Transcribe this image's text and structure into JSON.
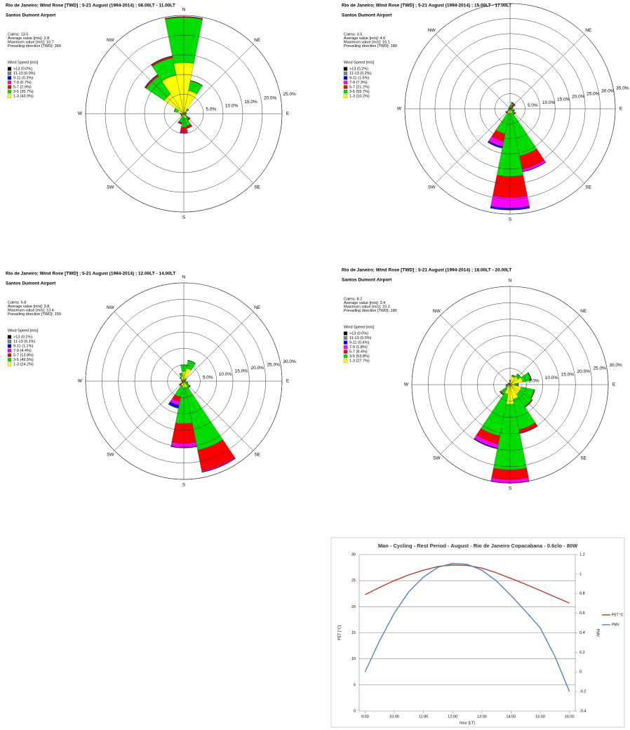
{
  "chart_data": [
    {
      "type": "windrose",
      "title": "Rio de Janeiro; Wind Rose [TWD] ; 5-21 August (1994-2014) ; 06.00LT - 11.00LT",
      "subtitle": "Santos Dumont Airport",
      "stats": [
        "Calms: 13.5",
        "Average value [m/s]: 2.8",
        "Maximum value [m/s]: 10.7",
        "Prevailing direction [TWD]: 360"
      ],
      "legend_title": "Wind Speed [m/s]",
      "categories": [
        "N",
        null,
        "NE",
        null,
        "E",
        null,
        "SE",
        null,
        "S",
        null,
        "SW",
        null,
        "W",
        null,
        "NW",
        null
      ],
      "rlim": [
        0,
        25
      ],
      "rticks": [
        {
          "value": 5,
          "label": "5.0%"
        },
        {
          "value": 10,
          "label": "10.0%"
        },
        {
          "value": 15,
          "label": "15.0%"
        },
        {
          "value": 20,
          "label": "20.0%"
        },
        {
          "value": 25,
          "label": "25.0%"
        }
      ],
      "series": [
        {
          "name": ">13 (0.0%)",
          "color": "#000000",
          "values": [
            0,
            0,
            0,
            0,
            0,
            0,
            0,
            0,
            0,
            0,
            0,
            0,
            0,
            0,
            0,
            0
          ]
        },
        {
          "name": "11-13 (0.0%)",
          "color": "#808080",
          "values": [
            0,
            0,
            0,
            0,
            0,
            0,
            0,
            0,
            0,
            0,
            0,
            0,
            0,
            0,
            0,
            0
          ]
        },
        {
          "name": "9-11 (0.3%)",
          "color": "#0000ff",
          "values": [
            0,
            0,
            0,
            0,
            0,
            0,
            0,
            0,
            0.1,
            0,
            0,
            0,
            0,
            0,
            0.1,
            0.1
          ]
        },
        {
          "name": "7-9 (0.7%)",
          "color": "#ff00ff",
          "values": [
            0,
            0,
            0,
            0,
            0,
            0,
            0.1,
            0.1,
            0.2,
            0.1,
            0,
            0,
            0,
            0,
            0.1,
            0.1
          ]
        },
        {
          "name": "5-7 (2.9%)",
          "color": "#ff0000",
          "values": [
            0.2,
            0.1,
            0,
            0,
            0,
            0,
            0.3,
            0.5,
            1.2,
            0.3,
            0,
            0,
            0,
            0,
            0.3,
            0.3
          ]
        },
        {
          "name": "3-5 (35.7%)",
          "color": "#00dd00",
          "values": [
            11.5,
            2.5,
            0.5,
            0.2,
            0.2,
            0.3,
            0.8,
            2,
            2.5,
            1.5,
            0.3,
            0.2,
            0.3,
            1,
            5.5,
            4.5
          ]
        },
        {
          "name": "1-3 (43.9%)",
          "color": "#ffff00",
          "values": [
            13,
            6,
            1,
            0.5,
            0.3,
            0.3,
            0.8,
            1.2,
            1,
            0.8,
            0.5,
            0.5,
            0.6,
            1.5,
            6,
            10
          ]
        }
      ]
    },
    {
      "type": "windrose",
      "title": "Rio de Janeiro; Wind Rose [TWD] ; 5-21 August (1994-2014) ; 15.00LT - 17.00LT",
      "subtitle": "Santos Dumont Airport",
      "stats": [
        "Calms: 3.5",
        "Average value [m/s]: 4.6",
        "Maximum value [m/s]: 15.1",
        "Prevailing direction [TWD]: 180"
      ],
      "legend_title": "Wind Speed [m/s]",
      "categories": [
        "N",
        null,
        "NE",
        null,
        "E",
        null,
        "SE",
        null,
        "S",
        null,
        "SW",
        null,
        "W",
        null,
        "NW",
        null
      ],
      "rlim": [
        0,
        35
      ],
      "rticks": [
        {
          "value": 5,
          "label": "5.0%"
        },
        {
          "value": 10,
          "label": "10.0%"
        },
        {
          "value": 15,
          "label": "15.0%"
        },
        {
          "value": 20,
          "label": "20.0%"
        },
        {
          "value": 25,
          "label": "25.0%"
        },
        {
          "value": 30,
          "label": "30.0%"
        },
        {
          "value": 35,
          "label": "35.0%"
        }
      ],
      "series": [
        {
          "name": ">13 (0.2%)",
          "color": "#000000",
          "values": [
            0,
            0,
            0,
            0,
            0,
            0,
            0,
            0,
            0.1,
            0.1,
            0,
            0,
            0,
            0,
            0,
            0
          ]
        },
        {
          "name": "11-13 (0.2%)",
          "color": "#808080",
          "values": [
            0,
            0,
            0,
            0,
            0,
            0,
            0,
            0,
            0.1,
            0.1,
            0,
            0,
            0,
            0,
            0,
            0
          ]
        },
        {
          "name": "9-11 (1.6%)",
          "color": "#0000ff",
          "values": [
            0,
            0,
            0,
            0,
            0,
            0,
            0,
            0.1,
            0.5,
            0.4,
            0,
            0,
            0,
            0,
            0,
            0
          ]
        },
        {
          "name": "7-9 (7.3%)",
          "color": "#ff00ff",
          "values": [
            0,
            0,
            0.2,
            0,
            0,
            0,
            0,
            0.8,
            3.5,
            1.8,
            0,
            0,
            0,
            0,
            0,
            0
          ]
        },
        {
          "name": "5-7 (21.2%)",
          "color": "#ff0000",
          "values": [
            0,
            0.2,
            0.8,
            0.2,
            0,
            0.2,
            0.3,
            4.5,
            7,
            2.5,
            0.3,
            0,
            0,
            0,
            0,
            0
          ]
        },
        {
          "name": "3-5 (55.7%)",
          "color": "#00dd00",
          "values": [
            0.5,
            1.2,
            0.8,
            0.5,
            0.3,
            0.8,
            1.5,
            14.5,
            21,
            7,
            1,
            0.3,
            0.2,
            0.2,
            0.2,
            0.3
          ]
        },
        {
          "name": "1-3 (10.2%)",
          "color": "#ffff00",
          "values": [
            0.5,
            0.8,
            0.3,
            0.3,
            0.3,
            0.5,
            0.5,
            1.5,
            1.5,
            1.5,
            0.5,
            0.3,
            0.2,
            0.2,
            0.3,
            0.3
          ]
        }
      ]
    },
    {
      "type": "windrose",
      "title": "Rio de Janeiro; Wind Rose [TWD] ; 5-21 August (1994-2014) ; 12.00LT - 14.00LT",
      "subtitle": "Santos Dumont Airport",
      "stats": [
        "Calms: 6.8",
        "Average value [m/s]: 3.8",
        "Maximum value [m/s]: 13.4",
        "Prevailing direction [TWD]: 150"
      ],
      "legend_title": "Wind Speed [m/s]",
      "categories": [
        "N",
        null,
        "NE",
        null,
        "E",
        null,
        "SE",
        null,
        "S",
        null,
        "SW",
        null,
        "W",
        null,
        "NW",
        null
      ],
      "rlim": [
        0,
        30
      ],
      "rticks": [
        {
          "value": 5,
          "label": "5.0%"
        },
        {
          "value": 10,
          "label": "10.0%"
        },
        {
          "value": 15,
          "label": "15.0%"
        },
        {
          "value": 20,
          "label": "20.0%"
        },
        {
          "value": 25,
          "label": "25.0%"
        },
        {
          "value": 30,
          "label": "30.0%"
        }
      ],
      "series": [
        {
          "name": ">13 (0.1%)",
          "color": "#000000",
          "values": [
            0,
            0,
            0,
            0,
            0,
            0,
            0,
            0,
            0,
            0.1,
            0,
            0,
            0,
            0,
            0,
            0
          ]
        },
        {
          "name": "11-13 (0.1%)",
          "color": "#808080",
          "values": [
            0,
            0,
            0,
            0,
            0,
            0,
            0,
            0,
            0,
            0.1,
            0,
            0,
            0,
            0,
            0,
            0
          ]
        },
        {
          "name": "9-11 (1.1%)",
          "color": "#0000ff",
          "values": [
            0,
            0,
            0,
            0,
            0,
            0,
            0,
            0.1,
            0.1,
            0.8,
            0,
            0,
            0,
            0,
            0,
            0
          ]
        },
        {
          "name": "7-9 (4.4%)",
          "color": "#ff00ff",
          "values": [
            0,
            0,
            0,
            0,
            0,
            0,
            0,
            0.3,
            1.3,
            1.2,
            0.2,
            0,
            0,
            0,
            0,
            0
          ]
        },
        {
          "name": "5-7 (13.8%)",
          "color": "#ff0000",
          "values": [
            0,
            0,
            0,
            0,
            0,
            0,
            0.2,
            6.5,
            6,
            1.3,
            0.2,
            0,
            0,
            0,
            0,
            0
          ]
        },
        {
          "name": "3-5 (49.5%)",
          "color": "#00dd00",
          "values": [
            2,
            2.5,
            0.5,
            0.2,
            0.2,
            0.8,
            1.5,
            19.5,
            11,
            3.5,
            0.8,
            0.3,
            0.2,
            0.3,
            0.5,
            1
          ]
        },
        {
          "name": "1-3 (24.2%)",
          "color": "#ffff00",
          "values": [
            3,
            4,
            0.5,
            0.3,
            0.3,
            0.5,
            0.8,
            2,
            2,
            1.5,
            0.5,
            0.3,
            0.3,
            0.5,
            1,
            1.5
          ]
        }
      ]
    },
    {
      "type": "windrose",
      "title": "Rio de Janeiro; Wind Rose [TWD] ; 5-21 August (1994-2014) ; 18.00LT - 20.00LT",
      "subtitle": "Santos Dumont Airport",
      "stats": [
        "Calms: 8.2",
        "Average value [m/s]: 3.4",
        "Maximum value [m/s]: 10.3",
        "Prevailing direction [TWD]: 180"
      ],
      "legend_title": "Wind Speed [m/s]",
      "categories": [
        "N",
        null,
        "NE",
        null,
        "E",
        null,
        "SE",
        null,
        "S",
        null,
        "SW",
        null,
        "W",
        null,
        "NW",
        null
      ],
      "rlim": [
        0,
        30
      ],
      "rticks": [
        {
          "value": 5,
          "label": "5.0%"
        },
        {
          "value": 10,
          "label": "10.0%"
        },
        {
          "value": 15,
          "label": "15.0%"
        },
        {
          "value": 20,
          "label": "20.0%"
        },
        {
          "value": 25,
          "label": "25.0%"
        },
        {
          "value": 30,
          "label": "30.0%"
        }
      ],
      "series": [
        {
          "name": ">13 (0.0%)",
          "color": "#000000",
          "values": [
            0,
            0,
            0,
            0,
            0,
            0,
            0,
            0,
            0,
            0,
            0,
            0,
            0,
            0,
            0,
            0
          ]
        },
        {
          "name": "11-13 (0.0%)",
          "color": "#808080",
          "values": [
            0,
            0,
            0,
            0,
            0,
            0,
            0,
            0,
            0,
            0,
            0,
            0,
            0,
            0,
            0,
            0
          ]
        },
        {
          "name": "9-11 (0.4%)",
          "color": "#0000ff",
          "values": [
            0,
            0,
            0,
            0,
            0,
            0,
            0,
            0,
            0.1,
            0.2,
            0,
            0,
            0,
            0,
            0,
            0
          ]
        },
        {
          "name": "7-9 (1.8%)",
          "color": "#ff00ff",
          "values": [
            0,
            0,
            0,
            0,
            0,
            0,
            0,
            0.2,
            1,
            1.2,
            0,
            0,
            0,
            0,
            0,
            0
          ]
        },
        {
          "name": "5-7 (8.4%)",
          "color": "#ff0000",
          "values": [
            0,
            0,
            0,
            0.2,
            0,
            0.2,
            0.3,
            1,
            3,
            2.5,
            0.3,
            0,
            0,
            0,
            0,
            0
          ]
        },
        {
          "name": "3-5 (53.8%)",
          "color": "#00dd00",
          "values": [
            0.3,
            0.5,
            1,
            2.5,
            1,
            4,
            4.5,
            9.5,
            20,
            13,
            2,
            0.5,
            0.3,
            0.2,
            0.2,
            0.2
          ]
        },
        {
          "name": "1-3 (27.7%)",
          "color": "#ffff00",
          "values": [
            1,
            2.5,
            3,
            4,
            1.5,
            3.5,
            3.5,
            4.5,
            6,
            3,
            1.5,
            0.8,
            0.8,
            0.5,
            0.3,
            0.3
          ]
        }
      ]
    },
    {
      "type": "line",
      "title": "Man - Cycling - Rest Period - August - Rio de Janeiro Copacabana - 0.6clo - 80W",
      "x_label": "hour [LT]",
      "y_label": "PET [°C]",
      "y2_label": "PMV",
      "x": [
        9,
        9.5,
        10,
        10.5,
        11,
        11.5,
        12,
        12.5,
        13,
        13.5,
        14,
        14.5,
        15,
        15.5,
        16
      ],
      "xlim": [
        8.8,
        16.2
      ],
      "xticks": [
        {
          "value": 9,
          "label": "9:00"
        },
        {
          "value": 10,
          "label": "10:00"
        },
        {
          "value": 11,
          "label": "11:00"
        },
        {
          "value": 12,
          "label": "12:00"
        },
        {
          "value": 13,
          "label": "13:00"
        },
        {
          "value": 14,
          "label": "14:00"
        },
        {
          "value": 15,
          "label": "15:00"
        },
        {
          "value": 16,
          "label": "16:00"
        }
      ],
      "ylim": [
        0,
        30
      ],
      "yticks": [
        0,
        5,
        10,
        15,
        20,
        25,
        30
      ],
      "y2lim": [
        -0.4,
        1.2
      ],
      "y2ticks": [
        -0.4,
        -0.2,
        0,
        0.2,
        0.4,
        0.6,
        0.8,
        1,
        1.2
      ],
      "grid": true,
      "series": [
        {
          "name": "PET °C",
          "color": "#c0392b",
          "values": [
            22.3,
            23.7,
            25.0,
            26.1,
            27.0,
            27.7,
            28.0,
            27.9,
            27.4,
            26.5,
            25.4,
            24.3,
            23.1,
            21.9,
            20.7
          ]
        },
        {
          "name": "PMV",
          "color": "#4a86c8",
          "axis": "y2",
          "values": [
            0.0,
            0.32,
            0.6,
            0.82,
            0.97,
            1.07,
            1.11,
            1.1,
            1.04,
            0.93,
            0.78,
            0.62,
            0.45,
            0.16,
            -0.2
          ]
        }
      ]
    }
  ]
}
